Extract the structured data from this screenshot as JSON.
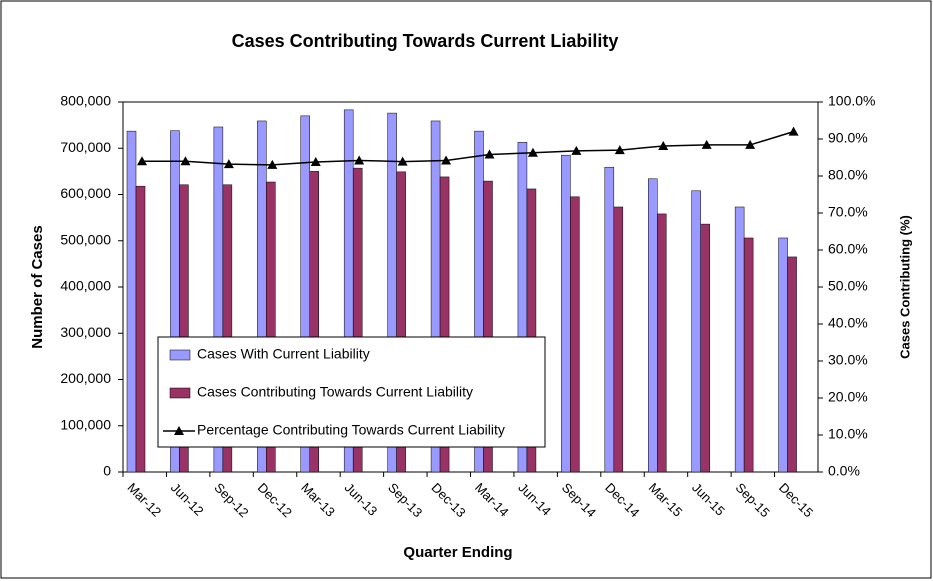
{
  "chart_data": {
    "type": "bar",
    "title": "Cases Contributing Towards Current Liability",
    "x_label": "Quarter Ending",
    "y_label": "Number of Cases",
    "y2_label": "Cases Contributing (%)",
    "categories": [
      "Mar-12",
      "Jun-12",
      "Sep-12",
      "Dec-12",
      "Mar-13",
      "Jun-13",
      "Sep-13",
      "Dec-13",
      "Mar-14",
      "Jun-14",
      "Sep-14",
      "Dec-14",
      "Mar-15",
      "Jun-15",
      "Sep-15",
      "Dec-15"
    ],
    "series": [
      {
        "name": "Cases With Current Liability",
        "type": "bar",
        "color": "#9999ff",
        "values": [
          737000,
          738000,
          746000,
          759000,
          770000,
          783000,
          776000,
          759000,
          737000,
          713000,
          685000,
          659000,
          634000,
          608000,
          573000,
          506000
        ]
      },
      {
        "name": "Cases Contributing Towards Current Liability",
        "type": "bar",
        "color": "#993366",
        "values": [
          618000,
          621000,
          621000,
          627000,
          650000,
          657000,
          649000,
          638000,
          629000,
          612000,
          595000,
          573000,
          558000,
          536000,
          506000,
          465000
        ]
      },
      {
        "name": "Percentage Contributing Towards Current Liability",
        "type": "line",
        "axis": "y2",
        "color": "#000000",
        "values": [
          84,
          84,
          83.2,
          83,
          83.8,
          84.2,
          83.9,
          84.2,
          85.8,
          86.3,
          86.8,
          87,
          88.1,
          88.4,
          88.4,
          92
        ]
      }
    ],
    "ylim": [
      0,
      800000
    ],
    "yticks": [
      0,
      {
        "value": 100000,
        "label": "100,000"
      },
      {
        "value": 200000,
        "label": "200,000"
      },
      {
        "value": 300000,
        "label": "300,000"
      },
      {
        "value": 400000,
        "label": "400,000"
      },
      {
        "value": 500000,
        "label": "500,000"
      },
      {
        "value": 600000,
        "label": "600,000"
      },
      {
        "value": 700000,
        "label": "700,000"
      },
      {
        "value": 800000,
        "label": "800,000"
      }
    ],
    "y2lim": [
      0,
      100
    ],
    "y2ticks": [
      {
        "value": 0,
        "label": "0.0%"
      },
      {
        "value": 10,
        "label": "10.0%"
      },
      {
        "value": 20,
        "label": "20.0%"
      },
      {
        "value": 30,
        "label": "30.0%"
      },
      {
        "value": 40,
        "label": "40.0%"
      },
      {
        "value": 50,
        "label": "50.0%"
      },
      {
        "value": 60,
        "label": "60.0%"
      },
      {
        "value": 70,
        "label": "70.0%"
      },
      {
        "value": 80,
        "label": "80.0%"
      },
      {
        "value": 90,
        "label": "90.0%"
      },
      {
        "value": 100,
        "label": "100.0%"
      }
    ]
  }
}
